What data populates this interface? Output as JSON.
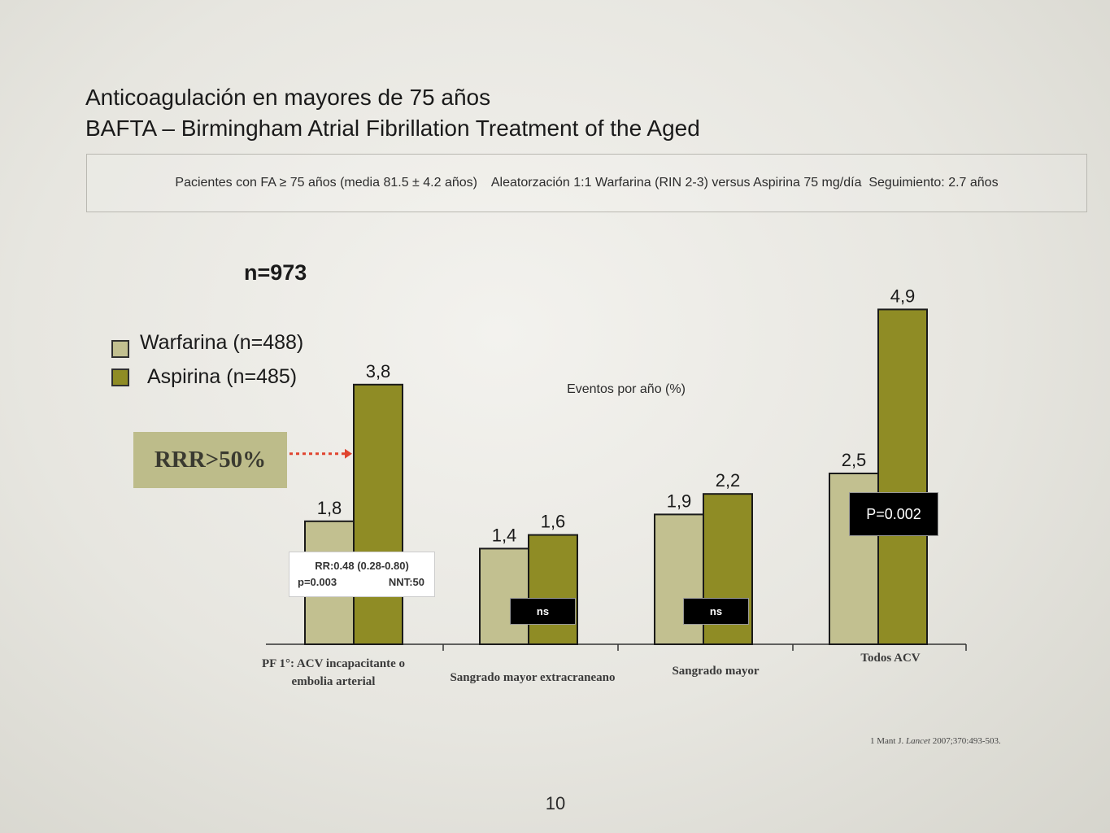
{
  "title": {
    "line1": "Anticoagulación en mayores de 75 años",
    "line2": "BAFTA – Birmingham Atrial Fibrillation Treatment of the Aged"
  },
  "study_info": "Pacientes con FA ≥ 75 años (media 81.5 ± 4.2 años)    Aleatorzación 1:1 Warfarina (RIN 2-3) versus Aspirina 75 mg/día  Seguimiento: 2.7 años",
  "n_total": "n=973",
  "legend": {
    "warfarina": "Warfarina (n=488)",
    "aspirina": "Aspirina (n=485)"
  },
  "rrr_label": "RRR>50%",
  "stat_box": {
    "rr": "RR:0.48 (0.28-0.80)",
    "p": "p=0.003",
    "nnt": "NNT:50"
  },
  "ns_labels": [
    "ns",
    "ns"
  ],
  "p_label": "P=0.002",
  "reference": {
    "prefix": "1 Mant J. ",
    "journal": "Lancet",
    "rest": " 2007;370:493-503."
  },
  "page_number": "10",
  "chart_data": {
    "type": "bar",
    "ylabel": "Eventos por año (%)",
    "ylim": [
      0,
      5.3
    ],
    "categories": [
      {
        "line1": "PF 1°: ACV incapacitante o",
        "line2": "embolia arterial"
      },
      {
        "line1": "Sangrado mayor extracraneano",
        "line2": ""
      },
      {
        "line1": "Sangrado mayor",
        "line2": ""
      },
      {
        "line1": "Todos ACV",
        "line2": ""
      }
    ],
    "series": [
      {
        "name": "Warfarina (n=488)",
        "values": [
          1.8,
          1.4,
          1.9,
          2.5
        ],
        "labels": [
          "1,8",
          "1,4",
          "1,9",
          "2,5"
        ]
      },
      {
        "name": "Aspirina (n=485)",
        "values": [
          3.8,
          1.6,
          2.2,
          4.9
        ],
        "labels": [
          "3,8",
          "1,6",
          "2,2",
          "4,9"
        ]
      }
    ],
    "colors": {
      "warfarina": "#c2c090",
      "aspirina": "#8f8c25",
      "outline": "#1a1a1a",
      "arrow": "#e0442f"
    }
  }
}
